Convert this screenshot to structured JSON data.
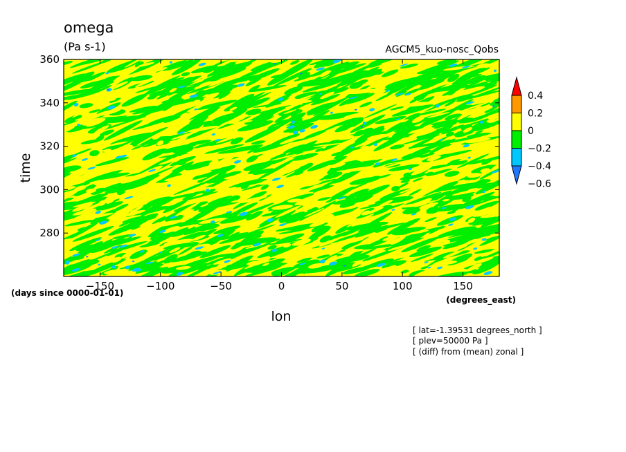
{
  "chart_data": {
    "type": "heatmap",
    "title": "omega",
    "units": "(Pa s-1)",
    "experiment": "AGCM5_kuo-nosc_Qobs",
    "xlabel": "lon",
    "xunits": "(degrees_east)",
    "ylabel": "time",
    "yunits": "(days since 0000-01-01)",
    "xlim": [
      -180,
      180
    ],
    "ylim": [
      260,
      360
    ],
    "xticks": [
      -150,
      -100,
      -50,
      0,
      50,
      100,
      150
    ],
    "yticks": [
      280,
      300,
      320,
      340,
      360
    ],
    "colorbar": {
      "levels": [
        -0.6,
        -0.4,
        -0.2,
        0,
        0.2,
        0.4
      ],
      "labels": [
        "0.4",
        "0.2",
        "0",
        "-0.2",
        "-0.4",
        "-0.6"
      ],
      "colors": [
        "#1e78ff",
        "#00c8ff",
        "#00ee00",
        "#ffff00",
        "#ff9900",
        "#ff0000"
      ]
    },
    "dominant_bands": [
      "0 to 0.2",
      "-0.2 to 0"
    ],
    "annotations": [
      "[ lat=-1.39531 degrees_north ]",
      "[ plev=50000 Pa ]",
      "[ (diff) from (mean) zonal ]"
    ]
  }
}
